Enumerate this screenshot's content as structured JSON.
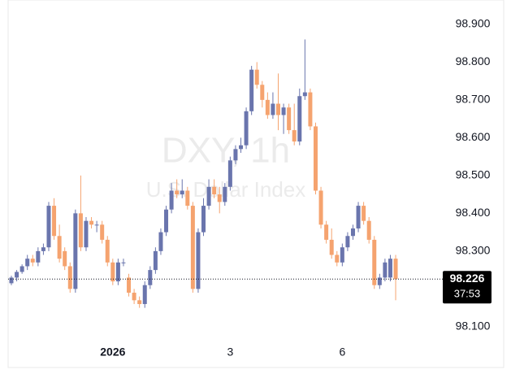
{
  "chart_data": {
    "type": "candlestick",
    "title": "DXY, 1h",
    "subtitle": "U.S. Dollar Index",
    "categories": [
      null,
      null,
      null,
      null,
      null,
      null,
      null,
      null,
      null,
      null,
      null,
      null,
      null,
      null,
      null,
      null,
      null,
      null,
      null,
      "2026",
      null,
      null,
      null,
      null,
      null,
      null,
      null,
      null,
      null,
      null,
      null,
      null,
      null,
      null,
      null,
      null,
      null,
      null,
      null,
      null,
      null,
      "3",
      null,
      null,
      null,
      null,
      null,
      null,
      null,
      null,
      null,
      null,
      null,
      null,
      null,
      null,
      null,
      null,
      null,
      null,
      null,
      null,
      "6",
      null,
      null,
      null,
      null,
      null,
      null,
      null,
      null,
      null,
      null
    ],
    "open": [
      98.215,
      98.23,
      98.245,
      98.26,
      98.28,
      98.27,
      98.3,
      98.31,
      98.42,
      98.34,
      98.3,
      98.26,
      98.2,
      98.4,
      98.31,
      98.38,
      98.37,
      98.37,
      98.33,
      98.27,
      98.22,
      98.27,
      98.23,
      98.19,
      98.17,
      98.16,
      98.21,
      98.25,
      98.3,
      98.35,
      98.41,
      98.46,
      98.45,
      98.46,
      98.42,
      98.2,
      98.35,
      98.42,
      98.47,
      98.45,
      98.43,
      98.47,
      98.54,
      98.57,
      98.58,
      98.67,
      98.78,
      98.74,
      98.7,
      98.66,
      98.69,
      98.66,
      98.68,
      98.62,
      98.59,
      98.71,
      98.72,
      98.63,
      98.46,
      98.37,
      98.33,
      98.29,
      98.27,
      98.31,
      98.34,
      98.36,
      98.42,
      98.38,
      98.33,
      98.21,
      98.23,
      98.23,
      98.28
    ],
    "high": [
      98.235,
      98.25,
      98.265,
      98.29,
      98.29,
      98.31,
      98.32,
      98.43,
      98.44,
      98.37,
      98.31,
      98.27,
      98.41,
      98.5,
      98.39,
      98.39,
      98.38,
      98.38,
      98.34,
      98.28,
      98.28,
      98.28,
      98.24,
      98.2,
      98.18,
      98.22,
      98.26,
      98.31,
      98.36,
      98.42,
      98.48,
      98.49,
      98.49,
      98.47,
      98.43,
      98.36,
      98.44,
      98.49,
      98.49,
      98.47,
      98.48,
      98.55,
      98.58,
      98.6,
      98.68,
      98.79,
      98.8,
      98.75,
      98.72,
      98.72,
      98.77,
      98.69,
      98.69,
      98.69,
      98.73,
      98.86,
      98.73,
      98.64,
      98.47,
      98.38,
      98.36,
      98.3,
      98.32,
      98.35,
      98.37,
      98.43,
      98.43,
      98.39,
      98.34,
      98.24,
      98.28,
      98.29,
      98.29
    ],
    "low": [
      98.21,
      98.22,
      98.24,
      98.25,
      98.26,
      98.26,
      98.29,
      98.3,
      98.33,
      98.27,
      98.25,
      98.19,
      98.19,
      98.3,
      98.3,
      98.36,
      98.35,
      98.32,
      98.26,
      98.21,
      98.21,
      98.26,
      98.18,
      98.16,
      98.15,
      98.15,
      98.2,
      98.24,
      98.29,
      98.34,
      98.4,
      98.44,
      98.44,
      98.41,
      98.19,
      98.19,
      98.34,
      98.41,
      98.44,
      98.4,
      98.42,
      98.46,
      98.53,
      98.56,
      98.57,
      98.66,
      98.73,
      98.68,
      98.65,
      98.65,
      98.62,
      98.61,
      98.61,
      98.58,
      98.58,
      98.7,
      98.62,
      98.45,
      98.36,
      98.32,
      98.28,
      98.26,
      98.26,
      98.3,
      98.33,
      98.35,
      98.37,
      98.32,
      98.2,
      98.2,
      98.22,
      98.22,
      98.17
    ],
    "close": [
      98.23,
      98.245,
      98.26,
      98.28,
      98.27,
      98.3,
      98.31,
      98.42,
      98.34,
      98.28,
      98.26,
      98.2,
      98.4,
      98.31,
      98.38,
      98.37,
      98.37,
      98.33,
      98.27,
      98.22,
      98.27,
      98.27,
      98.19,
      98.17,
      98.16,
      98.21,
      98.25,
      98.3,
      98.35,
      98.41,
      98.46,
      98.45,
      98.46,
      98.42,
      98.2,
      98.35,
      98.42,
      98.47,
      98.45,
      98.43,
      98.47,
      98.54,
      98.57,
      98.58,
      98.67,
      98.78,
      98.74,
      98.7,
      98.66,
      98.69,
      98.66,
      98.68,
      98.62,
      98.59,
      98.71,
      98.72,
      98.63,
      98.46,
      98.37,
      98.33,
      98.29,
      98.27,
      98.31,
      98.34,
      98.36,
      98.42,
      98.38,
      98.33,
      98.21,
      98.23,
      98.27,
      98.28,
      98.226
    ],
    "up_color": "#6a75ad",
    "down_color": "#f5a36f",
    "ylim": [
      97.99,
      98.96
    ],
    "yticks": [
      {
        "value": 98.1,
        "label": "98.100"
      },
      {
        "value": 98.3,
        "label": "98.300"
      },
      {
        "value": 98.4,
        "label": "98.400"
      },
      {
        "value": 98.5,
        "label": "98.500"
      },
      {
        "value": 98.6,
        "label": "98.600"
      },
      {
        "value": 98.7,
        "label": "98.700"
      },
      {
        "value": 98.8,
        "label": "98.800"
      },
      {
        "value": 98.9,
        "label": "98.900"
      }
    ],
    "last_price": 98.226,
    "countdown": "37:53"
  }
}
